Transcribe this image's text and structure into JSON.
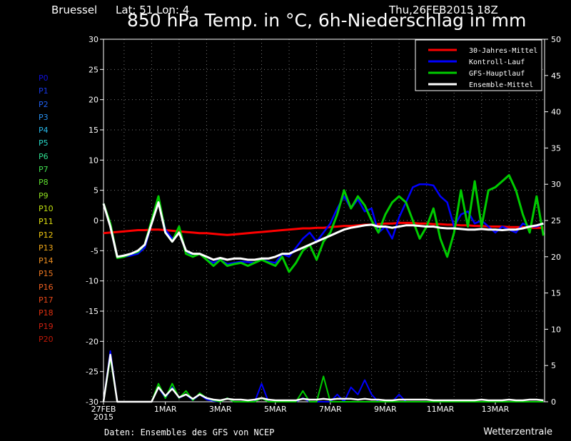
{
  "header": {
    "location": "Bruessel",
    "coords": "Lat: 51 Lon: 4",
    "run": "Thu,26FEB2015 18Z",
    "title": "850 hPa Temp. in °C, 6h-Niederschlag in mm"
  },
  "footer": {
    "source": "Daten: Ensembles des GFS von NCEP",
    "brand": "Wetterzentrale"
  },
  "members": [
    {
      "label": "P0",
      "color": "#1010e0"
    },
    {
      "label": "P1",
      "color": "#1838e8"
    },
    {
      "label": "P2",
      "color": "#2060f0"
    },
    {
      "label": "P3",
      "color": "#2890f0"
    },
    {
      "label": "P4",
      "color": "#28b8e8"
    },
    {
      "label": "P5",
      "color": "#28d8c8"
    },
    {
      "label": "P6",
      "color": "#30e090"
    },
    {
      "label": "P7",
      "color": "#40e050"
    },
    {
      "label": "P8",
      "color": "#60e030"
    },
    {
      "label": "P9",
      "color": "#90e020"
    },
    {
      "label": "P10",
      "color": "#c0e010"
    },
    {
      "label": "P11",
      "color": "#e0e010"
    },
    {
      "label": "P12",
      "color": "#f0c810"
    },
    {
      "label": "P13",
      "color": "#f0a818"
    },
    {
      "label": "P14",
      "color": "#f09020"
    },
    {
      "label": "P15",
      "color": "#f07820"
    },
    {
      "label": "P16",
      "color": "#f06020"
    },
    {
      "label": "P17",
      "color": "#e84818"
    },
    {
      "label": "P18",
      "color": "#e03010"
    },
    {
      "label": "P19",
      "color": "#d02010"
    },
    {
      "label": "P20",
      "color": "#c01808"
    }
  ],
  "chart_data": {
    "type": "line",
    "ylabel_left": "",
    "ylabel_right": "",
    "ylim_left": [
      -30,
      30
    ],
    "ylim_right": [
      0,
      50
    ],
    "yticks_left": [
      30,
      25,
      20,
      15,
      10,
      5,
      0,
      -5,
      -10,
      -15,
      -20,
      -25,
      -30
    ],
    "yticks_right": [
      50,
      45,
      40,
      35,
      30,
      25,
      20,
      15,
      10,
      5,
      0
    ],
    "x_tick_labels": [
      "27FEB",
      "1MAR",
      "3MAR",
      "5MAR",
      "7MAR",
      "9MAR",
      "11MAR",
      "13MAR"
    ],
    "x_year_label": "2015",
    "grid": true,
    "legend_position": "top-right",
    "legend": [
      {
        "name": "30-Jahres-Mittel",
        "color": "#ff0000"
      },
      {
        "name": "Kontroll-Lauf",
        "color": "#0000ff"
      },
      {
        "name": "GFS-Hauptlauf",
        "color": "#00cc00"
      },
      {
        "name": "Ensemble-Mittel",
        "color": "#ffffff"
      }
    ],
    "x_hours": [
      0,
      6,
      12,
      18,
      24,
      30,
      36,
      42,
      48,
      54,
      60,
      66,
      72,
      78,
      84,
      90,
      96,
      102,
      108,
      114,
      120,
      126,
      132,
      138,
      144,
      150,
      156,
      162,
      168,
      174,
      180,
      186,
      192,
      198,
      204,
      210,
      216,
      222,
      228,
      234,
      240,
      246,
      252,
      258,
      264,
      270,
      276,
      282,
      288,
      294,
      300,
      306,
      312,
      318,
      324,
      330,
      336,
      342,
      348,
      354,
      360,
      366,
      372,
      378,
      384
    ],
    "series_temp": [
      {
        "name": "30-Jahres-Mittel",
        "values": [
          -2.1,
          -2,
          -1.9,
          -1.8,
          -1.7,
          -1.6,
          -1.6,
          -1.5,
          -1.5,
          -1.6,
          -1.7,
          -1.8,
          -1.9,
          -2,
          -2.1,
          -2.1,
          -2.2,
          -2.3,
          -2.4,
          -2.3,
          -2.2,
          -2.1,
          -2,
          -1.9,
          -1.8,
          -1.7,
          -1.6,
          -1.5,
          -1.4,
          -1.3,
          -1.3,
          -1.2,
          -1.2,
          -1.1,
          -1,
          -0.9,
          -0.9,
          -0.8,
          -0.7,
          -0.7,
          -0.6,
          -0.5,
          -0.5,
          -0.4,
          -0.4,
          -0.4,
          -0.5,
          -0.5,
          -0.6,
          -0.6,
          -0.7,
          -0.7,
          -0.8,
          -0.8,
          -0.9,
          -0.9,
          -1,
          -1,
          -1,
          -1.1,
          -1.1,
          -1.1,
          -1.2,
          -1.2,
          -1.2
        ]
      },
      {
        "name": "Kontroll-Lauf",
        "values": [
          2.8,
          -1,
          -6.2,
          -6,
          -5.8,
          -5.5,
          -4.5,
          -0.5,
          3.5,
          -1.5,
          -3,
          -2,
          -5,
          -6,
          -5.5,
          -6.5,
          -7,
          -6.5,
          -7.2,
          -7,
          -6.8,
          -6.9,
          -7,
          -6.5,
          -6.8,
          -7,
          -5.5,
          -6,
          -4.5,
          -3,
          -2,
          -3.5,
          -2,
          -0.5,
          2,
          4,
          2,
          3.5,
          1.5,
          2,
          -2,
          -1,
          -3,
          0.5,
          3,
          5.5,
          6,
          6,
          5.8,
          4,
          3,
          -1,
          1,
          1.5,
          -0.5,
          0,
          -1,
          -2,
          -1,
          -1.5,
          -2,
          -0.5,
          -1,
          -1,
          -0.5
        ]
      },
      {
        "name": "GFS-Hauptlauf",
        "values": [
          2.8,
          -0.5,
          -6.2,
          -6,
          -5.5,
          -5.2,
          -4,
          0,
          4,
          -2,
          -3.5,
          -1,
          -5.5,
          -6,
          -5.5,
          -6.5,
          -7.5,
          -6.5,
          -7.5,
          -7.2,
          -7,
          -7.5,
          -7,
          -6.5,
          -7,
          -7.5,
          -6,
          -8.5,
          -7,
          -5,
          -4,
          -6.5,
          -3.5,
          -2,
          1,
          5,
          2,
          4,
          2.5,
          0,
          -2,
          1,
          3,
          4,
          3,
          0,
          -3,
          -1,
          2,
          -3,
          -6,
          -2,
          5,
          -1,
          6.5,
          -1,
          5,
          5.5,
          6.5,
          7.5,
          5,
          1,
          -2,
          4,
          -2.5
        ]
      },
      {
        "name": "Ensemble-Mittel",
        "values": [
          2.8,
          -1,
          -6,
          -5.8,
          -5.5,
          -5,
          -4,
          -0.5,
          3,
          -2,
          -3.5,
          -2,
          -5,
          -5.5,
          -5.5,
          -6,
          -6.5,
          -6.2,
          -6.5,
          -6.3,
          -6.3,
          -6.5,
          -6.5,
          -6.3,
          -6.3,
          -6,
          -5.5,
          -5.5,
          -5,
          -4.5,
          -4,
          -3.5,
          -3,
          -2.5,
          -2,
          -1.5,
          -1.2,
          -1,
          -0.8,
          -0.7,
          -1,
          -1,
          -1.2,
          -1,
          -0.8,
          -0.8,
          -0.9,
          -1,
          -1,
          -1.2,
          -1.3,
          -1.3,
          -1.4,
          -1.5,
          -1.5,
          -1.4,
          -1.5,
          -1.5,
          -1.6,
          -1.5,
          -1.5,
          -1.3,
          -1,
          -0.8,
          -0.5
        ]
      }
    ],
    "series_precip": [
      {
        "name": "Kontroll-Lauf",
        "values": [
          0,
          7,
          0,
          0,
          0,
          0,
          0,
          0,
          2,
          0.5,
          2,
          0.5,
          1,
          0.2,
          1,
          0.3,
          0.1,
          0,
          0.5,
          0,
          0,
          0,
          0,
          2.5,
          0,
          0,
          0,
          0,
          0,
          0.5,
          0,
          0,
          0,
          0,
          1,
          0,
          2,
          1,
          3,
          1,
          0,
          0,
          0,
          1,
          0,
          0,
          0,
          0,
          0,
          0,
          0,
          0,
          0,
          0,
          0,
          0,
          0,
          0,
          0,
          0,
          0,
          0,
          0,
          0,
          0
        ]
      },
      {
        "name": "GFS-Hauptlauf",
        "values": [
          0,
          6,
          0,
          0,
          0,
          0,
          0,
          0,
          2.5,
          0.5,
          2.5,
          0.5,
          1.5,
          0.2,
          1.2,
          0.5,
          0.2,
          0,
          0.5,
          0,
          0,
          0,
          0,
          0.5,
          0,
          0,
          0,
          0,
          0,
          1.5,
          0,
          0,
          3.5,
          0,
          0,
          0,
          0,
          0,
          0,
          0,
          0,
          0,
          0,
          0,
          0,
          0,
          0,
          0,
          0,
          0,
          0,
          0,
          0,
          0,
          0,
          0,
          0,
          0,
          0,
          0,
          0,
          0,
          0,
          0,
          0
        ]
      },
      {
        "name": "Ensemble-Mittel",
        "values": [
          0,
          6.5,
          0,
          0,
          0,
          0,
          0,
          0,
          2,
          0.8,
          1.8,
          0.6,
          1,
          0.4,
          1,
          0.5,
          0.3,
          0.2,
          0.4,
          0.3,
          0.3,
          0.2,
          0.3,
          0.5,
          0.3,
          0.2,
          0.2,
          0.2,
          0.2,
          0.4,
          0.3,
          0.3,
          0.4,
          0.3,
          0.4,
          0.4,
          0.4,
          0.3,
          0.4,
          0.3,
          0.3,
          0.2,
          0.2,
          0.3,
          0.3,
          0.3,
          0.3,
          0.3,
          0.2,
          0.2,
          0.2,
          0.2,
          0.2,
          0.2,
          0.2,
          0.3,
          0.2,
          0.2,
          0.2,
          0.3,
          0.2,
          0.2,
          0.3,
          0.3,
          0.2
        ]
      }
    ]
  }
}
